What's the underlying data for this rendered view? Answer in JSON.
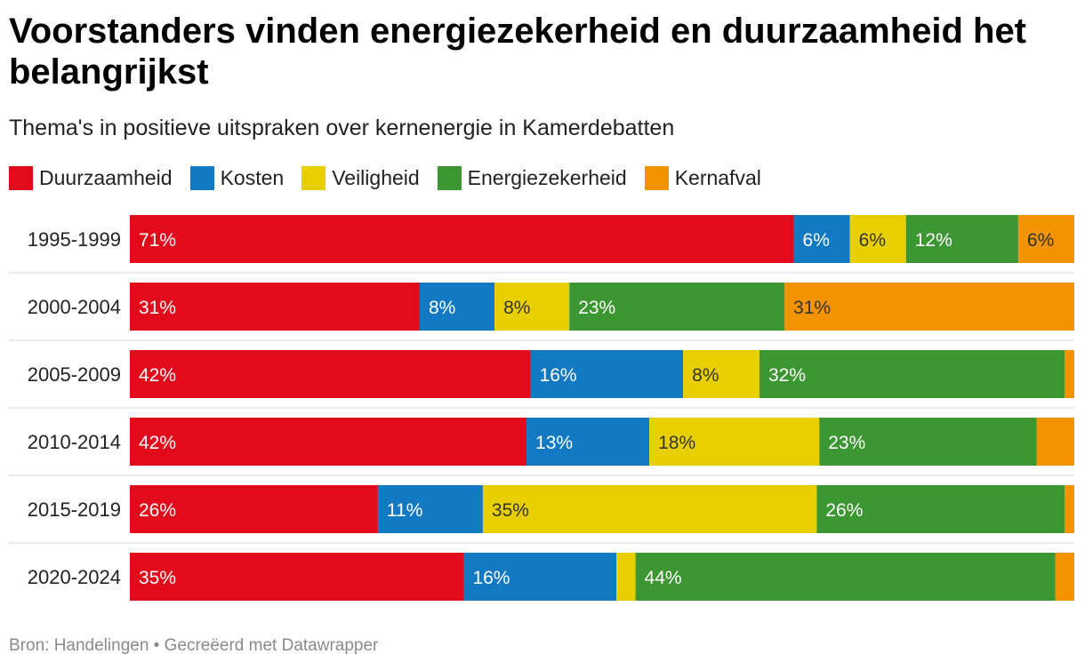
{
  "title": "Voorstanders vinden energiezekerheid en duurzaamheid het belangrijkst",
  "subtitle": "Thema's in positieve uitspraken over kernenergie in Kamerdebatten",
  "source": "Bron: Handelingen • Gecreëerd met Datawrapper",
  "chart_data": {
    "type": "bar",
    "orientation": "horizontal",
    "stacked": true,
    "unit": "%",
    "categories": [
      "1995-1999",
      "2000-2004",
      "2005-2009",
      "2010-2014",
      "2015-2019",
      "2020-2024"
    ],
    "series": [
      {
        "name": "Duurzaamheid",
        "color": "#e20b1b",
        "values": [
          71,
          31,
          42,
          42,
          26,
          35
        ],
        "labels": [
          "71%",
          "31%",
          "42%",
          "42%",
          "26%",
          "35%"
        ]
      },
      {
        "name": "Kosten",
        "color": "#1279c2",
        "values": [
          6,
          8,
          16,
          13,
          11,
          16
        ],
        "labels": [
          "6%",
          "8%",
          "16%",
          "13%",
          "11%",
          "16%"
        ]
      },
      {
        "name": "Veiligheid",
        "color": "#e8d000",
        "values": [
          6,
          8,
          8,
          18,
          35,
          2
        ],
        "labels": [
          "6%",
          "8%",
          "8%",
          "18%",
          "35%",
          ""
        ]
      },
      {
        "name": "Energiezekerheid",
        "color": "#3c9631",
        "values": [
          12,
          23,
          32,
          23,
          26,
          44
        ],
        "labels": [
          "12%",
          "23%",
          "32%",
          "23%",
          "26%",
          "44%"
        ]
      },
      {
        "name": "Kernafval",
        "color": "#f39300",
        "values": [
          6,
          31,
          1,
          4,
          1,
          2
        ],
        "labels": [
          "6%",
          "31%",
          "",
          "",
          "",
          ""
        ]
      }
    ],
    "legend_position": "top-left",
    "grid": false
  }
}
